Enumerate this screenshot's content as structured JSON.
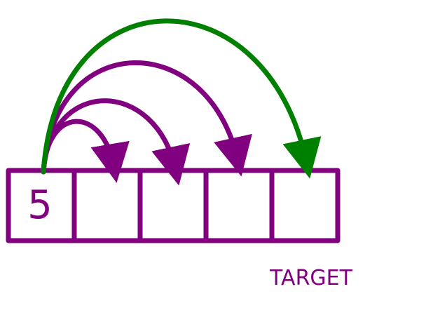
{
  "colors": {
    "cells": "#800080",
    "jumps": "#800080",
    "target_jump": "#008000",
    "text": "#800080",
    "background": "#ffffff"
  },
  "array": {
    "cells": [
      {
        "value": "5"
      },
      {
        "value": ""
      },
      {
        "value": ""
      },
      {
        "value": ""
      },
      {
        "value": ""
      }
    ]
  },
  "jumps": [
    {
      "from": 0,
      "to": 1,
      "kind": "normal"
    },
    {
      "from": 0,
      "to": 2,
      "kind": "normal"
    },
    {
      "from": 0,
      "to": 3,
      "kind": "normal"
    },
    {
      "from": 0,
      "to": 4,
      "kind": "target"
    }
  ],
  "target_label": "TARGET"
}
